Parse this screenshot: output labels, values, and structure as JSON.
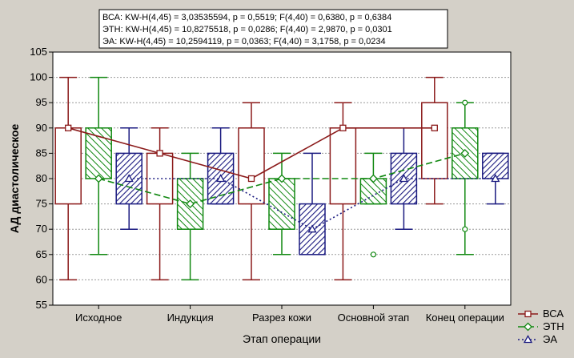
{
  "chart_data": {
    "type": "boxplot",
    "ylabel": "АД диастолическое",
    "xlabel": "Этап операции",
    "ylim": [
      55,
      105
    ],
    "yticks": [
      55,
      60,
      65,
      70,
      75,
      80,
      85,
      90,
      95,
      100,
      105
    ],
    "grid": true,
    "legend_position": "right",
    "categories": [
      "Исходное",
      "Индукция",
      "Разрез кожи",
      "Основной этап",
      "Конец операции"
    ],
    "stats_lines": [
      "ВСА: KW-H(4,45) = 3,03535594, p = 0,5519; F(4,40) = 0,6380, p = 0,6384",
      "ЭТН: KW-H(4,45) = 10,8275518, p = 0,0286; F(4,40) = 2,9870, p = 0,0301",
      "ЭА: KW-H(4,45) = 10,2594119, p = 0,0363; F(4,40) = 3,1758, p = 0,0234"
    ],
    "series": [
      {
        "name": "ВСА",
        "color": "#8b1a1a",
        "marker": "square",
        "line_style": "solid",
        "pattern": "none",
        "boxes": [
          {
            "min": 60,
            "q1": 75,
            "median": 90,
            "q3": 90,
            "max": 100
          },
          {
            "min": 60,
            "q1": 75,
            "median": 85,
            "q3": 85,
            "max": 90
          },
          {
            "min": 60,
            "q1": 75,
            "median": 80,
            "q3": 90,
            "max": 95
          },
          {
            "min": 60,
            "q1": 75,
            "median": 90,
            "q3": 90,
            "max": 95
          },
          {
            "min": 75,
            "q1": 80,
            "median": 90,
            "q3": 95,
            "max": 100
          }
        ],
        "outliers": []
      },
      {
        "name": "ЭТН",
        "color": "#118811",
        "marker": "diamond",
        "line_style": "dashed",
        "pattern": "hatch-green",
        "boxes": [
          {
            "min": 65,
            "q1": 80,
            "median": 80,
            "q3": 90,
            "max": 100
          },
          {
            "min": 60,
            "q1": 70,
            "median": 75,
            "q3": 80,
            "max": 85
          },
          {
            "min": 65,
            "q1": 70,
            "median": 80,
            "q3": 80,
            "max": 85
          },
          {
            "min": 75,
            "q1": 75,
            "median": 80,
            "q3": 80,
            "max": 85
          },
          {
            "min": 65,
            "q1": 80,
            "median": 85,
            "q3": 90,
            "max": 95
          }
        ],
        "outliers": [
          {
            "category": 3,
            "value": 65
          },
          {
            "category": 4,
            "value": 70
          },
          {
            "category": 4,
            "value": 95
          }
        ]
      },
      {
        "name": "ЭА",
        "color": "#1a1a80",
        "marker": "triangle",
        "line_style": "dotted",
        "pattern": "hatch-blue",
        "boxes": [
          {
            "min": 70,
            "q1": 75,
            "median": 80,
            "q3": 85,
            "max": 90
          },
          {
            "min": 75,
            "q1": 75,
            "median": 80,
            "q3": 85,
            "max": 90
          },
          {
            "min": 65,
            "q1": 65,
            "median": 70,
            "q3": 75,
            "max": 85
          },
          {
            "min": 70,
            "q1": 75,
            "median": 80,
            "q3": 85,
            "max": 90
          },
          {
            "min": 75,
            "q1": 80,
            "median": 80,
            "q3": 85,
            "max": 85
          }
        ],
        "outliers": []
      }
    ]
  }
}
